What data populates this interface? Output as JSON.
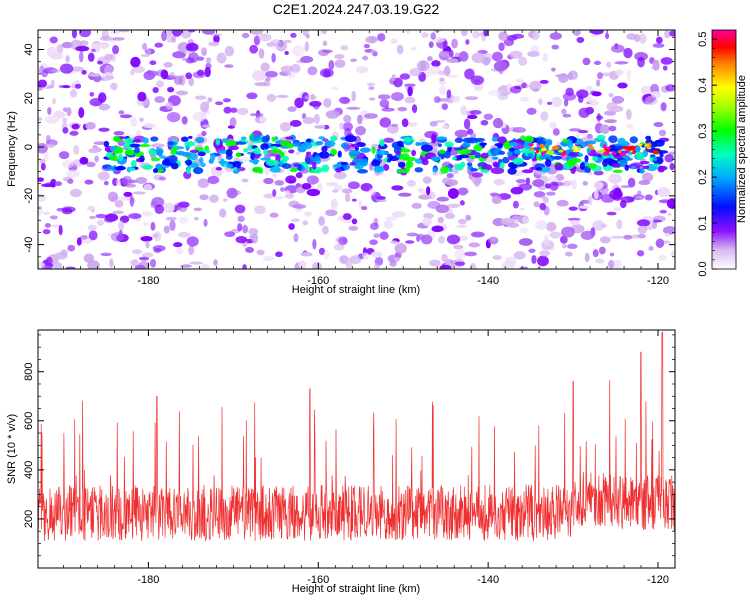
{
  "title": "C2E1.2024.247.03.19.G22",
  "chart_data": [
    {
      "type": "heatmap",
      "xlabel": "Height of straight line (km)",
      "ylabel": "Frequency (Hz)",
      "xlim": [
        -193,
        -118
      ],
      "ylim": [
        -50,
        48
      ],
      "xticks": [
        -180,
        -160,
        -140,
        -120
      ],
      "yticks": [
        40,
        20,
        0,
        -20,
        -40
      ],
      "colorbar": {
        "label": "Normalized spectral amplitude",
        "range": [
          0.0,
          0.52
        ],
        "ticks": [
          0.0,
          0.1,
          0.2,
          0.3,
          0.4,
          0.5
        ],
        "colormap": [
          "#ffffff",
          "#d8b8f0",
          "#7f00ff",
          "#0000ff",
          "#00b0ff",
          "#00ffb0",
          "#00ff00",
          "#b0ff00",
          "#ffff00",
          "#ff8000",
          "#ff0000",
          "#ff00a0"
        ]
      },
      "band": {
        "center_frequency_hz": -3,
        "half_width_hz": 7,
        "strongest_region_km": [
          -135,
          -120
        ]
      }
    },
    {
      "type": "line",
      "xlabel": "Height of straight line (km)",
      "ylabel": "SNR (10 * v/v)",
      "xlim": [
        -193,
        -118
      ],
      "ylim": [
        0,
        970
      ],
      "xticks": [
        -180,
        -160,
        -140,
        -120
      ],
      "yticks": [
        200,
        400,
        600,
        800
      ],
      "color": "#f03030",
      "summary": {
        "typical_range": [
          100,
          350
        ],
        "notable_peaks": [
          {
            "x": -179,
            "y": 700
          },
          {
            "x": -161,
            "y": 730
          },
          {
            "x": -130,
            "y": 760
          },
          {
            "x": -122,
            "y": 880
          },
          {
            "x": -119.5,
            "y": 960
          }
        ]
      }
    }
  ]
}
